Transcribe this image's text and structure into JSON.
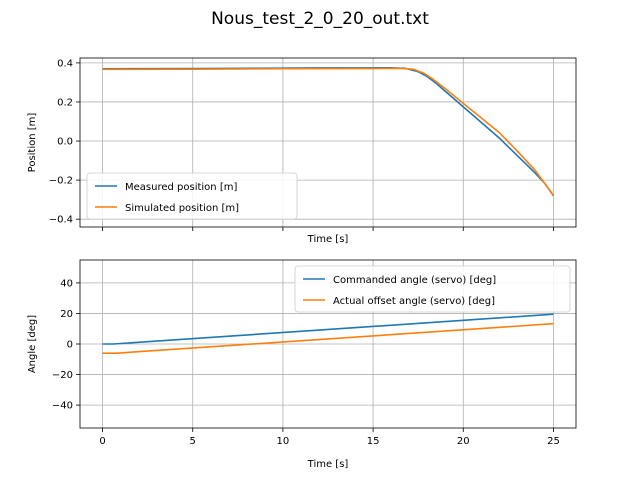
{
  "figure_title": "Nous_test_2_0_20_out.txt",
  "colors": {
    "blue": "#1f77b4",
    "orange": "#ff7f0e"
  },
  "chart_data": [
    {
      "type": "line",
      "title": "",
      "xlabel": "Time [s]",
      "ylabel": "Position [m]",
      "xlim": [
        -1.25,
        26.25
      ],
      "ylim": [
        -0.44,
        0.425
      ],
      "xticks": [
        0,
        5,
        10,
        15,
        20,
        25
      ],
      "yticks": [
        0.4,
        0.2,
        0.0,
        -0.2,
        -0.4
      ],
      "ytick_labels": [
        "0.4",
        "0.2",
        "0.0",
        "−0.2",
        "−0.4"
      ],
      "show_xtick_labels": false,
      "grid": true,
      "legend_location": "lower-left",
      "series": [
        {
          "name": "Measured position [m]",
          "color": "#1f77b4",
          "x": [
            0,
            5,
            10,
            12,
            14,
            16,
            16.8,
            17.5,
            18.0,
            18.5,
            19.0,
            19.5,
            20.0,
            20.5,
            21.0,
            21.5,
            22.0,
            22.5,
            23.0,
            23.5,
            24.0,
            24.5,
            25.0
          ],
          "y": [
            0.37,
            0.371,
            0.373,
            0.374,
            0.374,
            0.375,
            0.372,
            0.355,
            0.33,
            0.295,
            0.255,
            0.215,
            0.175,
            0.135,
            0.095,
            0.055,
            0.015,
            -0.03,
            -0.075,
            -0.12,
            -0.165,
            -0.215,
            -0.28
          ]
        },
        {
          "name": "Simulated position [m]",
          "color": "#ff7f0e",
          "x": [
            0,
            5,
            10,
            15,
            16.5,
            17.2,
            17.8,
            18.3,
            19.0,
            20.0,
            21.0,
            22.0,
            23.0,
            24.0,
            25.0
          ],
          "y": [
            0.367,
            0.368,
            0.37,
            0.371,
            0.372,
            0.368,
            0.348,
            0.318,
            0.268,
            0.193,
            0.118,
            0.043,
            -0.052,
            -0.152,
            -0.278
          ]
        }
      ]
    },
    {
      "type": "line",
      "title": "",
      "xlabel": "Time [s]",
      "ylabel": "Angle [deg]",
      "xlim": [
        -1.25,
        26.25
      ],
      "ylim": [
        -55,
        55
      ],
      "xticks": [
        0,
        5,
        10,
        15,
        20,
        25
      ],
      "yticks": [
        40,
        20,
        0,
        -20,
        -40
      ],
      "ytick_labels": [
        "40",
        "20",
        "0",
        "−20",
        "−40"
      ],
      "show_xtick_labels": true,
      "grid": true,
      "legend_location": "top-right",
      "series": [
        {
          "name": "Commanded angle (servo) [deg]",
          "color": "#1f77b4",
          "x": [
            0,
            0.6,
            25
          ],
          "y": [
            0,
            0,
            19.5
          ]
        },
        {
          "name": "Actual offset angle (servo) [deg]",
          "color": "#ff7f0e",
          "x": [
            0,
            0.8,
            25
          ],
          "y": [
            -6,
            -6,
            13.3
          ]
        }
      ]
    }
  ]
}
